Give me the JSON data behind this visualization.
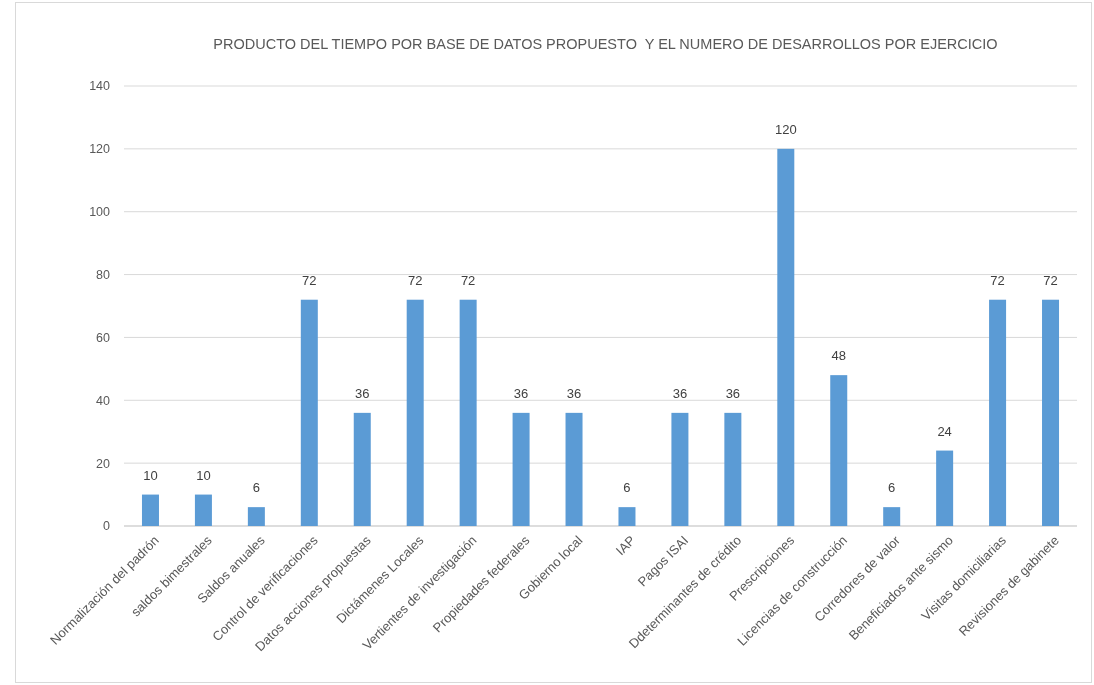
{
  "chart_data": {
    "type": "bar",
    "title": "PRODUCTO DEL TIEMPO POR BASE DE DATOS PROPUESTO  Y EL NUMERO DE DESARROLLOS POR EJERCICIO",
    "categories": [
      "Normalización del padrón",
      "saldos bimestrales",
      "Saldos anuales",
      "Control de verificaciones",
      "Datos acciones propuestas",
      "Dictámenes Locales",
      "Vertientes de investigación",
      "Propiedades federales",
      "Gobierno local",
      "IAP",
      "Pagos ISAI",
      "Ddeterminantes de crédito",
      "Prescripciones",
      "Licencias de construcción",
      "Corredores de valor",
      "Beneficiados ante sismo",
      "Visitas domiciliarias",
      "Revisiones de gabinete"
    ],
    "values": [
      10,
      10,
      6,
      72,
      36,
      72,
      72,
      36,
      36,
      6,
      36,
      36,
      120,
      48,
      6,
      24,
      72,
      72
    ],
    "color": "#5b9bd5",
    "ylim": [
      0,
      140
    ],
    "yticks": [
      0,
      20,
      40,
      60,
      80,
      100,
      120,
      140
    ],
    "grid": "y",
    "data_labels": true
  }
}
